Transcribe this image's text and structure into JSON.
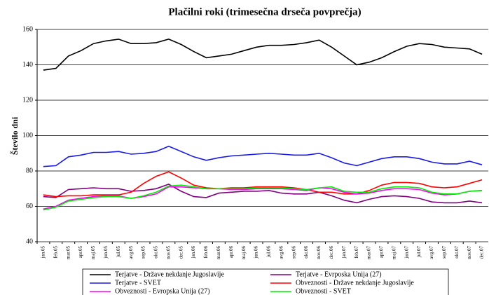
{
  "chart_data": {
    "type": "line",
    "title": "Plačilni roki (trimesečna drseča povprečja)",
    "y_label": "Število dni",
    "categories": [
      "jan.05",
      "feb.05",
      "mar.05",
      "apr.05",
      "maj.05",
      "jun.05",
      "jul.05",
      "avg.05",
      "sep.05",
      "okt.05",
      "nov.05",
      "dec.05",
      "jan.06",
      "feb.06",
      "mar.06",
      "apr.06",
      "maj.06",
      "jun.06",
      "jul.06",
      "avg.06",
      "sep.06",
      "okt.06",
      "nov.06",
      "dec.06",
      "jan.07",
      "feb.07",
      "mar.07",
      "apr.07",
      "maj.07",
      "jun.07",
      "jul.07",
      "avg.07",
      "sep.07",
      "okt.07",
      "nov.07",
      "dec.07"
    ],
    "series": [
      {
        "name": "Terjatve - Države nekdanje Jugoslavije",
        "color": "#000000",
        "values": [
          137,
          138,
          145,
          148,
          152,
          153.5,
          154.5,
          152,
          152,
          152.5,
          154.5,
          151.5,
          147.5,
          144,
          145,
          146,
          148,
          150,
          151,
          151,
          151.5,
          152.5,
          154,
          150,
          145,
          140,
          141.5,
          144,
          147.5,
          150.5,
          152,
          151.5,
          150,
          149.5,
          149,
          146
        ]
      },
      {
        "name": "Terjatve - Evrposka Unija (27)",
        "color": "#800080",
        "values": [
          65.5,
          65,
          69.5,
          70,
          70.5,
          70,
          70,
          68.5,
          69,
          70,
          72.5,
          68.5,
          65.5,
          65,
          67.5,
          68,
          68.5,
          68.5,
          69,
          67.5,
          67,
          67,
          68,
          66,
          63.5,
          62,
          64,
          65.5,
          66,
          65.5,
          64.5,
          62.5,
          62,
          62,
          63,
          62
        ]
      },
      {
        "name": "Terjatve - SVET",
        "color": "#1a1ae6",
        "values": [
          82.5,
          83,
          88,
          89,
          90.5,
          90.5,
          91,
          89.5,
          90,
          91,
          94,
          91,
          88,
          86,
          87.5,
          88.5,
          89,
          89.5,
          90,
          89.5,
          89,
          89,
          90,
          87.5,
          84.5,
          83,
          85,
          87,
          88,
          88,
          87,
          85,
          84,
          84,
          85.5,
          83.5
        ]
      },
      {
        "name": "Obveznosti - Države nekdanje Jugoslavije",
        "color": "#ff0000",
        "values": [
          66.5,
          65.5,
          66,
          66,
          66.5,
          66.5,
          66.5,
          68,
          73,
          77,
          79.5,
          76,
          72,
          70.5,
          70,
          70.5,
          70.5,
          71,
          71,
          71,
          70.5,
          69.5,
          68,
          68,
          67,
          67,
          69,
          72,
          73.5,
          73.5,
          73,
          71,
          70.5,
          71,
          73,
          75
        ]
      },
      {
        "name": "Obveznosti - Evropska Unija (27)",
        "color": "#ff00ff",
        "values": [
          58.5,
          60,
          63.5,
          64.5,
          65.5,
          66,
          66,
          64.5,
          65.5,
          67,
          71,
          71,
          70.5,
          70,
          70,
          69.5,
          69.5,
          70,
          70,
          70,
          69.5,
          69,
          70.5,
          70,
          68,
          67,
          67.5,
          69,
          70,
          70,
          69.5,
          67.5,
          66.5,
          67,
          68.5,
          69
        ]
      },
      {
        "name": "Obveznosti - SVET",
        "color": "#00ee00",
        "values": [
          58,
          59.5,
          63,
          64,
          65,
          65.5,
          65.5,
          64.5,
          66,
          68,
          71.5,
          72,
          71,
          70,
          70,
          70,
          70,
          70.5,
          70.5,
          70.5,
          70,
          69.5,
          70.5,
          71,
          68.5,
          68,
          68,
          70,
          71,
          71,
          70.5,
          68,
          67,
          67,
          68.5,
          69
        ]
      }
    ],
    "ylim": [
      40,
      160
    ],
    "yticks": [
      40,
      60,
      80,
      100,
      120,
      140,
      160
    ],
    "grid": true,
    "legend": "bottom"
  }
}
